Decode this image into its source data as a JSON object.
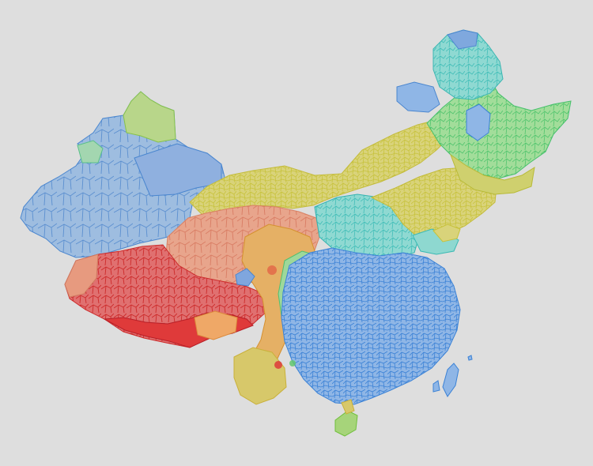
{
  "map": {
    "background": "#dedede",
    "palette": {
      "blue": "#4a8fd8",
      "steelblue": "#6e9fd0",
      "cyan": "#45c7c9",
      "green": "#6fcf7a",
      "yellow": "#d3cc55",
      "orange": "#e7a35e",
      "salmon": "#e79a7f",
      "red": "#de3a3a",
      "darkred": "#c91f2a"
    }
  }
}
